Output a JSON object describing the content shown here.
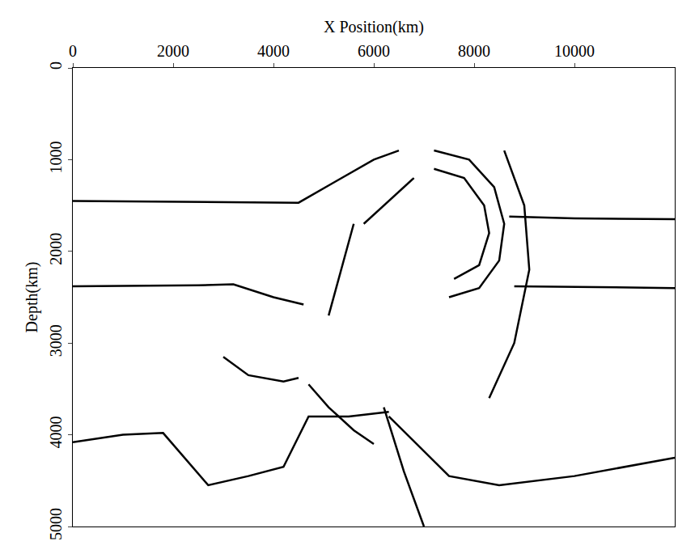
{
  "chart_data": {
    "type": "line",
    "x_label": "X Position(km)",
    "y_label": "Depth(km)",
    "xlim": [
      0,
      12000
    ],
    "ylim": [
      5000,
      0
    ],
    "xticks": [
      0,
      2000,
      4000,
      6000,
      8000,
      10000
    ],
    "yticks": [
      0,
      1000,
      2000,
      3000,
      4000,
      5000
    ],
    "grid": false,
    "series": [
      {
        "color": "#000000",
        "x": [
          0,
          2000,
          4500,
          5200,
          6000,
          6500
        ],
        "y": [
          1450,
          1460,
          1470,
          1250,
          1000,
          900
        ]
      },
      {
        "color": "#000000",
        "x": [
          8700,
          10000,
          12000
        ],
        "y": [
          1620,
          1640,
          1650
        ]
      },
      {
        "color": "#000000",
        "x": [
          0,
          2500,
          3200,
          4000,
          4600
        ],
        "y": [
          2380,
          2370,
          2360,
          2500,
          2580
        ]
      },
      {
        "color": "#000000",
        "x": [
          8800,
          12000
        ],
        "y": [
          2380,
          2400
        ]
      },
      {
        "color": "#000000",
        "x": [
          3000,
          3500,
          4200,
          4500
        ],
        "y": [
          3150,
          3350,
          3420,
          3380
        ]
      },
      {
        "color": "#000000",
        "x": [
          0,
          1000,
          1800,
          2700,
          3500,
          4200,
          4700,
          5500,
          6300
        ],
        "y": [
          4080,
          4000,
          3980,
          4550,
          4450,
          4350,
          3800,
          3800,
          3750
        ]
      },
      {
        "color": "#000000",
        "x": [
          6300,
          7500,
          8500,
          10000,
          12000
        ],
        "y": [
          3800,
          4450,
          4550,
          4450,
          4250
        ]
      },
      {
        "color": "#000000",
        "x": [
          6200,
          6600,
          7000
        ],
        "y": [
          3700,
          4400,
          5000
        ]
      },
      {
        "color": "#000000",
        "x": [
          5600,
          5100
        ],
        "y": [
          1700,
          2700
        ]
      },
      {
        "color": "#000000",
        "x": [
          5800,
          6300,
          6800
        ],
        "y": [
          1700,
          1450,
          1200
        ]
      },
      {
        "color": "#000000",
        "x": [
          4700,
          5100,
          5600,
          6000
        ],
        "y": [
          3450,
          3700,
          3950,
          4100
        ]
      },
      {
        "color": "#000000",
        "x": [
          7200,
          7900,
          8400,
          8600,
          8500,
          8100,
          7500
        ],
        "y": [
          900,
          1000,
          1300,
          1700,
          2100,
          2400,
          2500
        ]
      },
      {
        "color": "#000000",
        "x": [
          7200,
          7800,
          8200,
          8300,
          8100,
          7600
        ],
        "y": [
          1100,
          1200,
          1500,
          1800,
          2150,
          2300
        ]
      },
      {
        "color": "#000000",
        "x": [
          8600,
          9000,
          9100,
          8800,
          8300
        ],
        "y": [
          900,
          1500,
          2200,
          3000,
          3600
        ]
      }
    ]
  }
}
